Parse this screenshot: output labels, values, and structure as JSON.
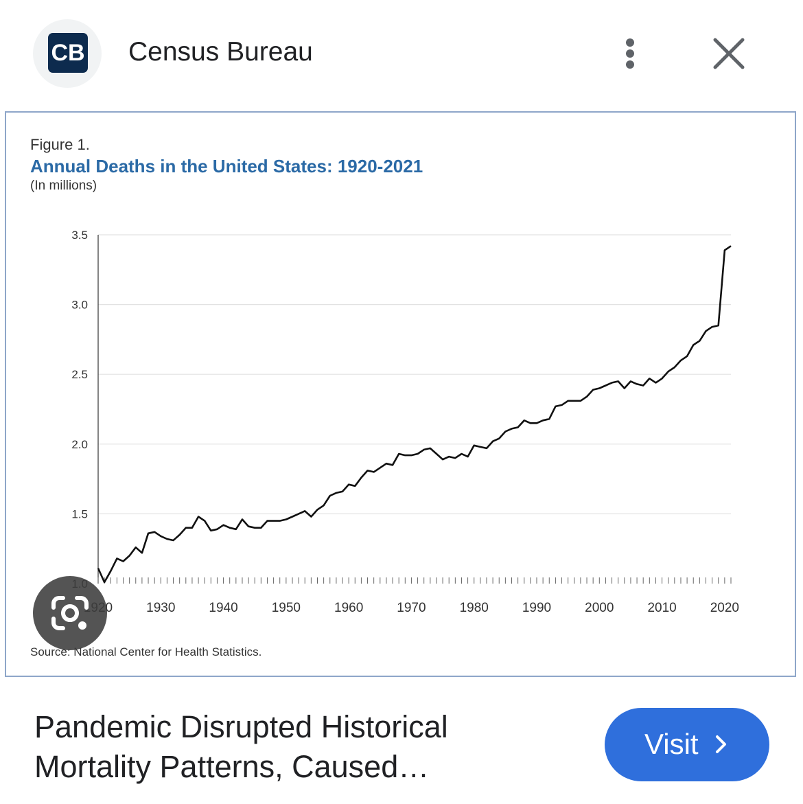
{
  "header": {
    "logo_text": "CB",
    "source_name": "Census Bureau",
    "icons": {
      "more": "more-vertical-icon",
      "close": "close-icon"
    }
  },
  "figure": {
    "label": "Figure 1.",
    "source_note": "Source: National Center for Health Statistics."
  },
  "chart_data": {
    "type": "line",
    "title": "Annual Deaths in the United States: 1920-2021",
    "subtitle": "(In millions)",
    "xlabel": "",
    "ylabel": "",
    "xlim": [
      1920,
      2021
    ],
    "ylim": [
      1.0,
      3.5
    ],
    "x_ticks": [
      "1920",
      "1930",
      "1940",
      "1950",
      "1960",
      "1970",
      "1980",
      "1990",
      "2000",
      "2010",
      "2020"
    ],
    "y_ticks": [
      "1.0",
      "1.5",
      "2.0",
      "2.5",
      "3.0",
      "3.5"
    ],
    "grid": "horizontal",
    "series": [
      {
        "color": "#111111",
        "x": [
          1920,
          1921,
          1922,
          1923,
          1924,
          1925,
          1926,
          1927,
          1928,
          1929,
          1930,
          1931,
          1932,
          1933,
          1934,
          1935,
          1936,
          1937,
          1938,
          1939,
          1940,
          1941,
          1942,
          1943,
          1944,
          1945,
          1946,
          1947,
          1948,
          1949,
          1950,
          1951,
          1952,
          1953,
          1954,
          1955,
          1956,
          1957,
          1958,
          1959,
          1960,
          1961,
          1962,
          1963,
          1964,
          1965,
          1966,
          1967,
          1968,
          1969,
          1970,
          1971,
          1972,
          1973,
          1974,
          1975,
          1976,
          1977,
          1978,
          1979,
          1980,
          1981,
          1982,
          1983,
          1984,
          1985,
          1986,
          1987,
          1988,
          1989,
          1990,
          1991,
          1992,
          1993,
          1994,
          1995,
          1996,
          1997,
          1998,
          1999,
          2000,
          2001,
          2002,
          2003,
          2004,
          2005,
          2006,
          2007,
          2008,
          2009,
          2010,
          2011,
          2012,
          2013,
          2014,
          2015,
          2016,
          2017,
          2018,
          2019,
          2020,
          2021
        ],
        "values": [
          1.11,
          1.01,
          1.09,
          1.18,
          1.16,
          1.2,
          1.26,
          1.22,
          1.36,
          1.37,
          1.34,
          1.32,
          1.31,
          1.35,
          1.4,
          1.4,
          1.48,
          1.45,
          1.38,
          1.39,
          1.42,
          1.4,
          1.39,
          1.46,
          1.41,
          1.4,
          1.4,
          1.45,
          1.45,
          1.45,
          1.46,
          1.48,
          1.5,
          1.52,
          1.48,
          1.53,
          1.56,
          1.63,
          1.65,
          1.66,
          1.71,
          1.7,
          1.76,
          1.81,
          1.8,
          1.83,
          1.86,
          1.85,
          1.93,
          1.92,
          1.92,
          1.93,
          1.96,
          1.97,
          1.93,
          1.89,
          1.91,
          1.9,
          1.93,
          1.91,
          1.99,
          1.98,
          1.97,
          2.02,
          2.04,
          2.09,
          2.11,
          2.12,
          2.17,
          2.15,
          2.15,
          2.17,
          2.18,
          2.27,
          2.28,
          2.31,
          2.31,
          2.31,
          2.34,
          2.39,
          2.4,
          2.42,
          2.44,
          2.45,
          2.4,
          2.45,
          2.43,
          2.42,
          2.47,
          2.44,
          2.47,
          2.52,
          2.55,
          2.6,
          2.63,
          2.71,
          2.74,
          2.81,
          2.84,
          2.85,
          3.39,
          3.42
        ]
      }
    ]
  },
  "result": {
    "title": "Pandemic Disrupted Historical Mortality Patterns, Caused…",
    "visit_label": "Visit",
    "icons": {
      "visit": "chevron-right-icon",
      "lens": "camera-search-icon"
    }
  }
}
